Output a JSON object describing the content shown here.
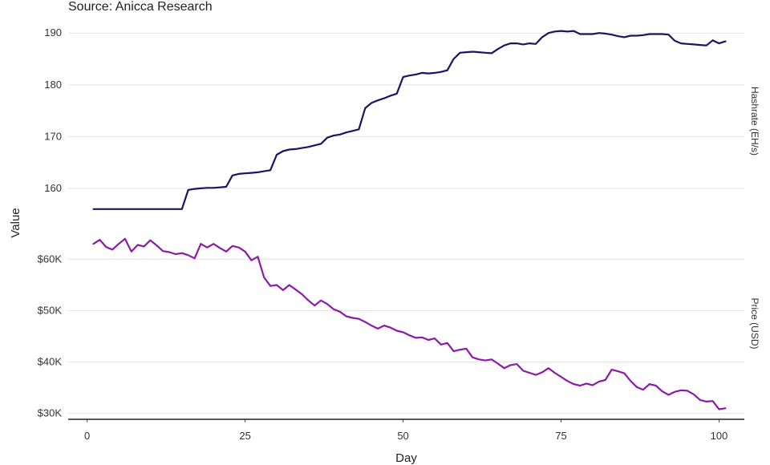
{
  "source": "Source: Anicca Research",
  "chart_data": {
    "type": "line",
    "xlabel": "Day",
    "ylabel": "Value",
    "xlim": [
      -3,
      104
    ],
    "x_ticks": [
      0,
      25,
      50,
      75,
      100
    ],
    "x_tick_labels": [
      "0",
      "25",
      "50",
      "75",
      "100"
    ],
    "grid": true,
    "legend": "none",
    "panels": [
      {
        "name": "Hashrate (EH/s)",
        "color": "#1b1464",
        "ylim": [
          155.5,
          190.5
        ],
        "y_ticks": [
          160,
          170,
          180,
          190
        ],
        "y_tick_labels": [
          "160",
          "170",
          "180",
          "190"
        ],
        "x": [
          1,
          2,
          3,
          4,
          5,
          6,
          7,
          8,
          9,
          10,
          11,
          12,
          13,
          14,
          15,
          16,
          17,
          18,
          19,
          20,
          21,
          22,
          23,
          24,
          25,
          26,
          27,
          28,
          29,
          30,
          31,
          32,
          33,
          34,
          35,
          36,
          37,
          38,
          39,
          40,
          41,
          42,
          43,
          44,
          45,
          46,
          47,
          48,
          49,
          50,
          51,
          52,
          53,
          54,
          55,
          56,
          57,
          58,
          59,
          60,
          61,
          62,
          63,
          64,
          65,
          66,
          67,
          68,
          69,
          70,
          71,
          72,
          73,
          74,
          75,
          76,
          77,
          78,
          79,
          80,
          81,
          82,
          83,
          84,
          85,
          86,
          87,
          88,
          89,
          90,
          91,
          92,
          93,
          94,
          95,
          96,
          97,
          98,
          99,
          100,
          101
        ],
        "values": [
          156.0,
          156.0,
          156.0,
          156.0,
          156.0,
          156.0,
          156.0,
          156.0,
          156.0,
          156.0,
          156.0,
          156.0,
          156.0,
          156.0,
          156.0,
          159.7,
          159.9,
          160.0,
          160.1,
          160.1,
          160.2,
          160.3,
          162.5,
          162.8,
          162.9,
          163.0,
          163.1,
          163.3,
          163.5,
          166.5,
          167.2,
          167.5,
          167.6,
          167.8,
          168.0,
          168.3,
          168.6,
          169.8,
          170.2,
          170.4,
          170.8,
          171.1,
          171.4,
          175.5,
          176.5,
          177.0,
          177.4,
          177.9,
          178.3,
          181.5,
          181.8,
          182.0,
          182.3,
          182.2,
          182.3,
          182.5,
          182.8,
          185.0,
          186.2,
          186.3,
          186.4,
          186.3,
          186.2,
          186.1,
          186.9,
          187.6,
          188.0,
          188.0,
          187.8,
          188.0,
          187.9,
          189.2,
          190.0,
          190.3,
          190.4,
          190.3,
          190.4,
          189.8,
          189.8,
          189.8,
          190.0,
          189.9,
          189.7,
          189.4,
          189.2,
          189.5,
          189.5,
          189.6,
          189.8,
          189.8,
          189.8,
          189.7,
          188.5,
          188.0,
          187.9,
          187.8,
          187.7,
          187.6,
          188.6,
          188.0,
          188.4
        ]
      },
      {
        "name": "Price (USD)",
        "color": "#8b1aa8",
        "ylim": [
          29000,
          66000
        ],
        "y_ticks": [
          30000,
          40000,
          50000,
          60000
        ],
        "y_tick_labels": [
          "$30K",
          "$40K",
          "$50K",
          "$60K"
        ],
        "x": [
          1,
          2,
          3,
          4,
          5,
          6,
          7,
          8,
          9,
          10,
          11,
          12,
          13,
          14,
          15,
          16,
          17,
          18,
          19,
          20,
          21,
          22,
          23,
          24,
          25,
          26,
          27,
          28,
          29,
          30,
          31,
          32,
          33,
          34,
          35,
          36,
          37,
          38,
          39,
          40,
          41,
          42,
          43,
          44,
          45,
          46,
          47,
          48,
          49,
          50,
          51,
          52,
          53,
          54,
          55,
          56,
          57,
          58,
          59,
          60,
          61,
          62,
          63,
          64,
          65,
          66,
          67,
          68,
          69,
          70,
          71,
          72,
          73,
          74,
          75,
          76,
          77,
          78,
          79,
          80,
          81,
          82,
          83,
          84,
          85,
          86,
          87,
          88,
          89,
          90,
          91,
          92,
          93,
          94,
          95,
          96,
          97,
          98,
          99,
          100,
          101
        ],
        "values": [
          63000,
          63800,
          62400,
          61900,
          63000,
          64000,
          61500,
          62800,
          62500,
          63700,
          62700,
          61600,
          61400,
          61000,
          61200,
          60800,
          60200,
          63000,
          62300,
          63000,
          62200,
          61500,
          62600,
          62300,
          61500,
          59800,
          60500,
          56500,
          54800,
          55000,
          54000,
          55000,
          54100,
          53200,
          52000,
          51000,
          52000,
          51300,
          50300,
          49800,
          48900,
          48600,
          48400,
          47800,
          47100,
          46500,
          47100,
          46700,
          46100,
          45800,
          45200,
          44700,
          44800,
          44300,
          44600,
          43400,
          43700,
          42100,
          42400,
          42600,
          40900,
          40500,
          40300,
          40500,
          39700,
          38800,
          39400,
          39600,
          38300,
          37900,
          37500,
          38000,
          38800,
          37900,
          37100,
          36300,
          35700,
          35400,
          35800,
          35500,
          36200,
          36500,
          38500,
          38200,
          37800,
          36300,
          35100,
          34600,
          35700,
          35400,
          34300,
          33600,
          34200,
          34500,
          34400,
          33700,
          32600,
          32300,
          32400,
          30800,
          31000
        ]
      }
    ]
  }
}
